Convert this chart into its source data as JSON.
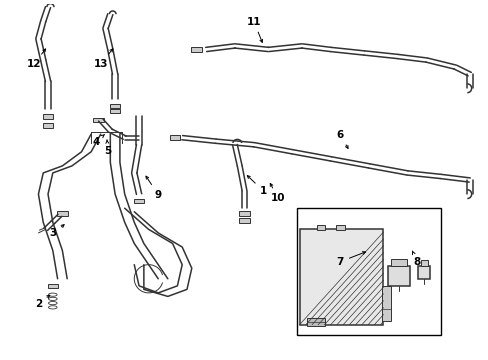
{
  "bg_color": "#ffffff",
  "line_color": "#333333",
  "text_color": "#000000",
  "border_color": "#000000",
  "figsize": [
    4.89,
    3.6
  ],
  "dpi": 100,
  "label_defs": {
    "12": {
      "lpos": [
        0.06,
        0.82
      ],
      "tpos": [
        0.09,
        0.88
      ]
    },
    "13": {
      "lpos": [
        0.2,
        0.82
      ],
      "tpos": [
        0.23,
        0.88
      ]
    },
    "4": {
      "lpos": [
        0.19,
        0.55
      ],
      "tpos": [
        0.22,
        0.615
      ]
    },
    "5": {
      "lpos": [
        0.21,
        0.5
      ],
      "tpos": [
        0.22,
        0.565
      ]
    },
    "9": {
      "lpos": [
        0.32,
        0.45
      ],
      "tpos": [
        0.29,
        0.52
      ]
    },
    "3": {
      "lpos": [
        0.1,
        0.34
      ],
      "tpos": [
        0.13,
        0.38
      ]
    },
    "2": {
      "lpos": [
        0.07,
        0.14
      ],
      "tpos": [
        0.1,
        0.18
      ]
    },
    "1": {
      "lpos": [
        0.54,
        0.46
      ],
      "tpos": [
        0.5,
        0.52
      ]
    },
    "6": {
      "lpos": [
        0.7,
        0.62
      ],
      "tpos": [
        0.72,
        0.58
      ]
    },
    "7": {
      "lpos": [
        0.7,
        0.26
      ],
      "tpos": [
        0.76,
        0.3
      ]
    },
    "8": {
      "lpos": [
        0.86,
        0.26
      ],
      "tpos": [
        0.85,
        0.3
      ]
    },
    "10": {
      "lpos": [
        0.57,
        0.44
      ],
      "tpos": [
        0.55,
        0.5
      ]
    },
    "11": {
      "lpos": [
        0.52,
        0.94
      ],
      "tpos": [
        0.54,
        0.88
      ]
    }
  }
}
